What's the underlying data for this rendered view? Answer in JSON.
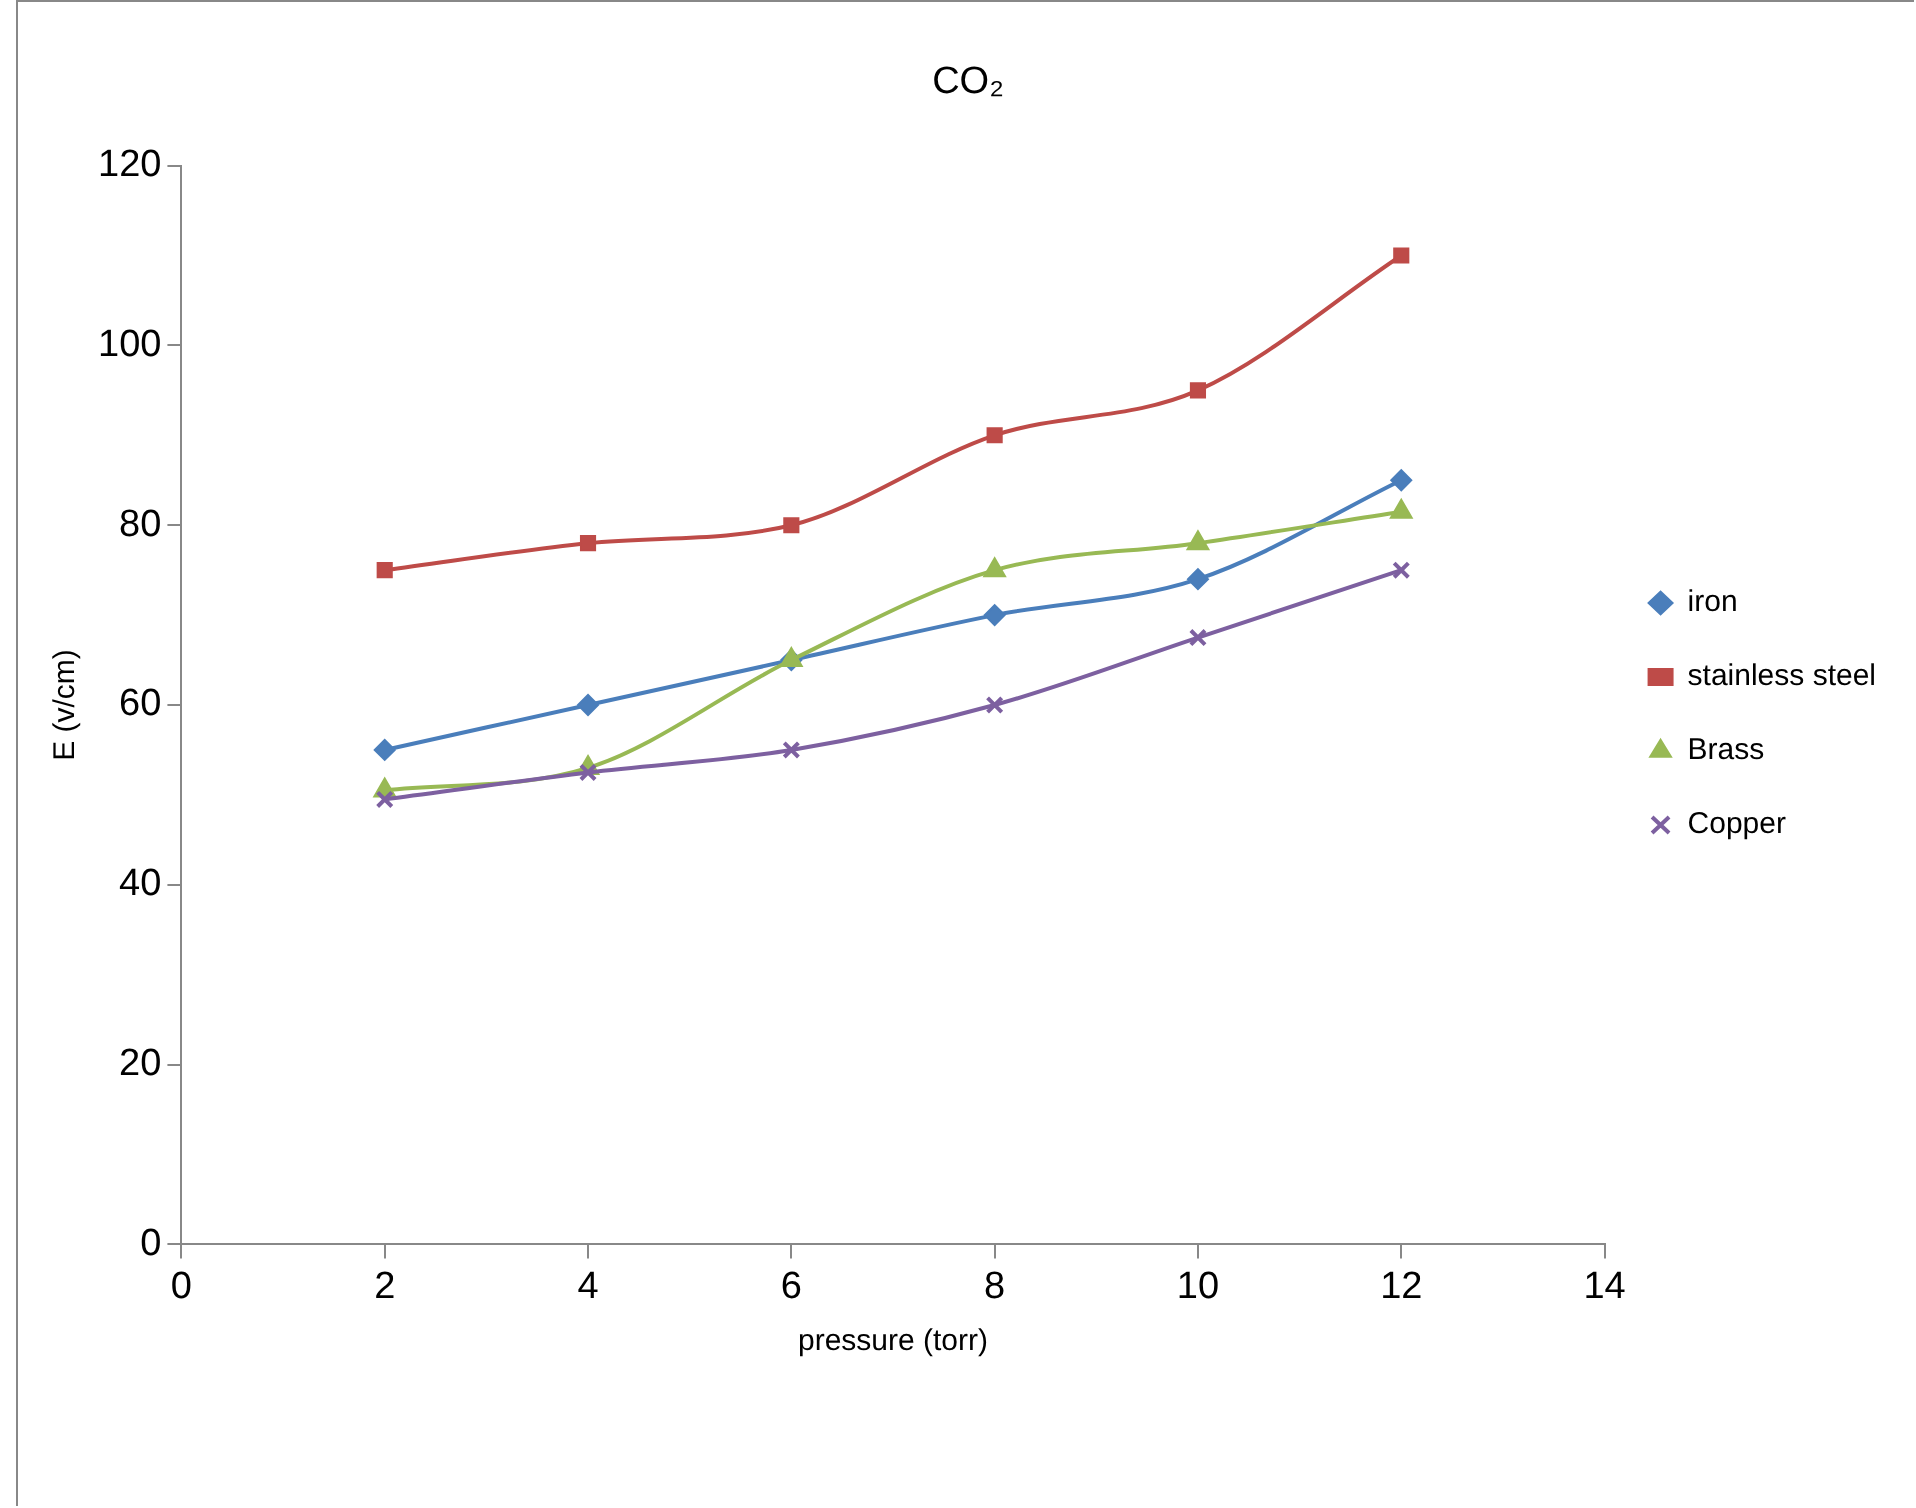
{
  "chart_data": {
    "type": "line",
    "title": "CO₂",
    "xlabel": "pressure (torr)",
    "ylabel": "E (v/cm)",
    "x": [
      2,
      4,
      6,
      8,
      10,
      12
    ],
    "series": [
      {
        "name": "iron",
        "color": "#4a7ebb",
        "marker": "diamond",
        "values": [
          55,
          60,
          65,
          70,
          74,
          85
        ]
      },
      {
        "name": "stainless steel",
        "color": "#be4b48",
        "marker": "square",
        "values": [
          75,
          78,
          80,
          90,
          95,
          110
        ]
      },
      {
        "name": "Brass",
        "color": "#98b954",
        "marker": "triangle",
        "values": [
          50.5,
          53,
          65,
          75,
          78,
          81.5
        ]
      },
      {
        "name": "Copper",
        "color": "#7d60a0",
        "marker": "cross",
        "values": [
          49.5,
          52.5,
          55,
          60,
          67.5,
          75
        ]
      }
    ],
    "xlim": [
      0,
      14
    ],
    "xticks": [
      0,
      2,
      4,
      6,
      8,
      10,
      12,
      14
    ],
    "ylim": [
      0,
      120
    ],
    "yticks": [
      0,
      20,
      40,
      60,
      80,
      100,
      120
    ],
    "grid": false,
    "legend": "right",
    "line_style": "solid"
  }
}
